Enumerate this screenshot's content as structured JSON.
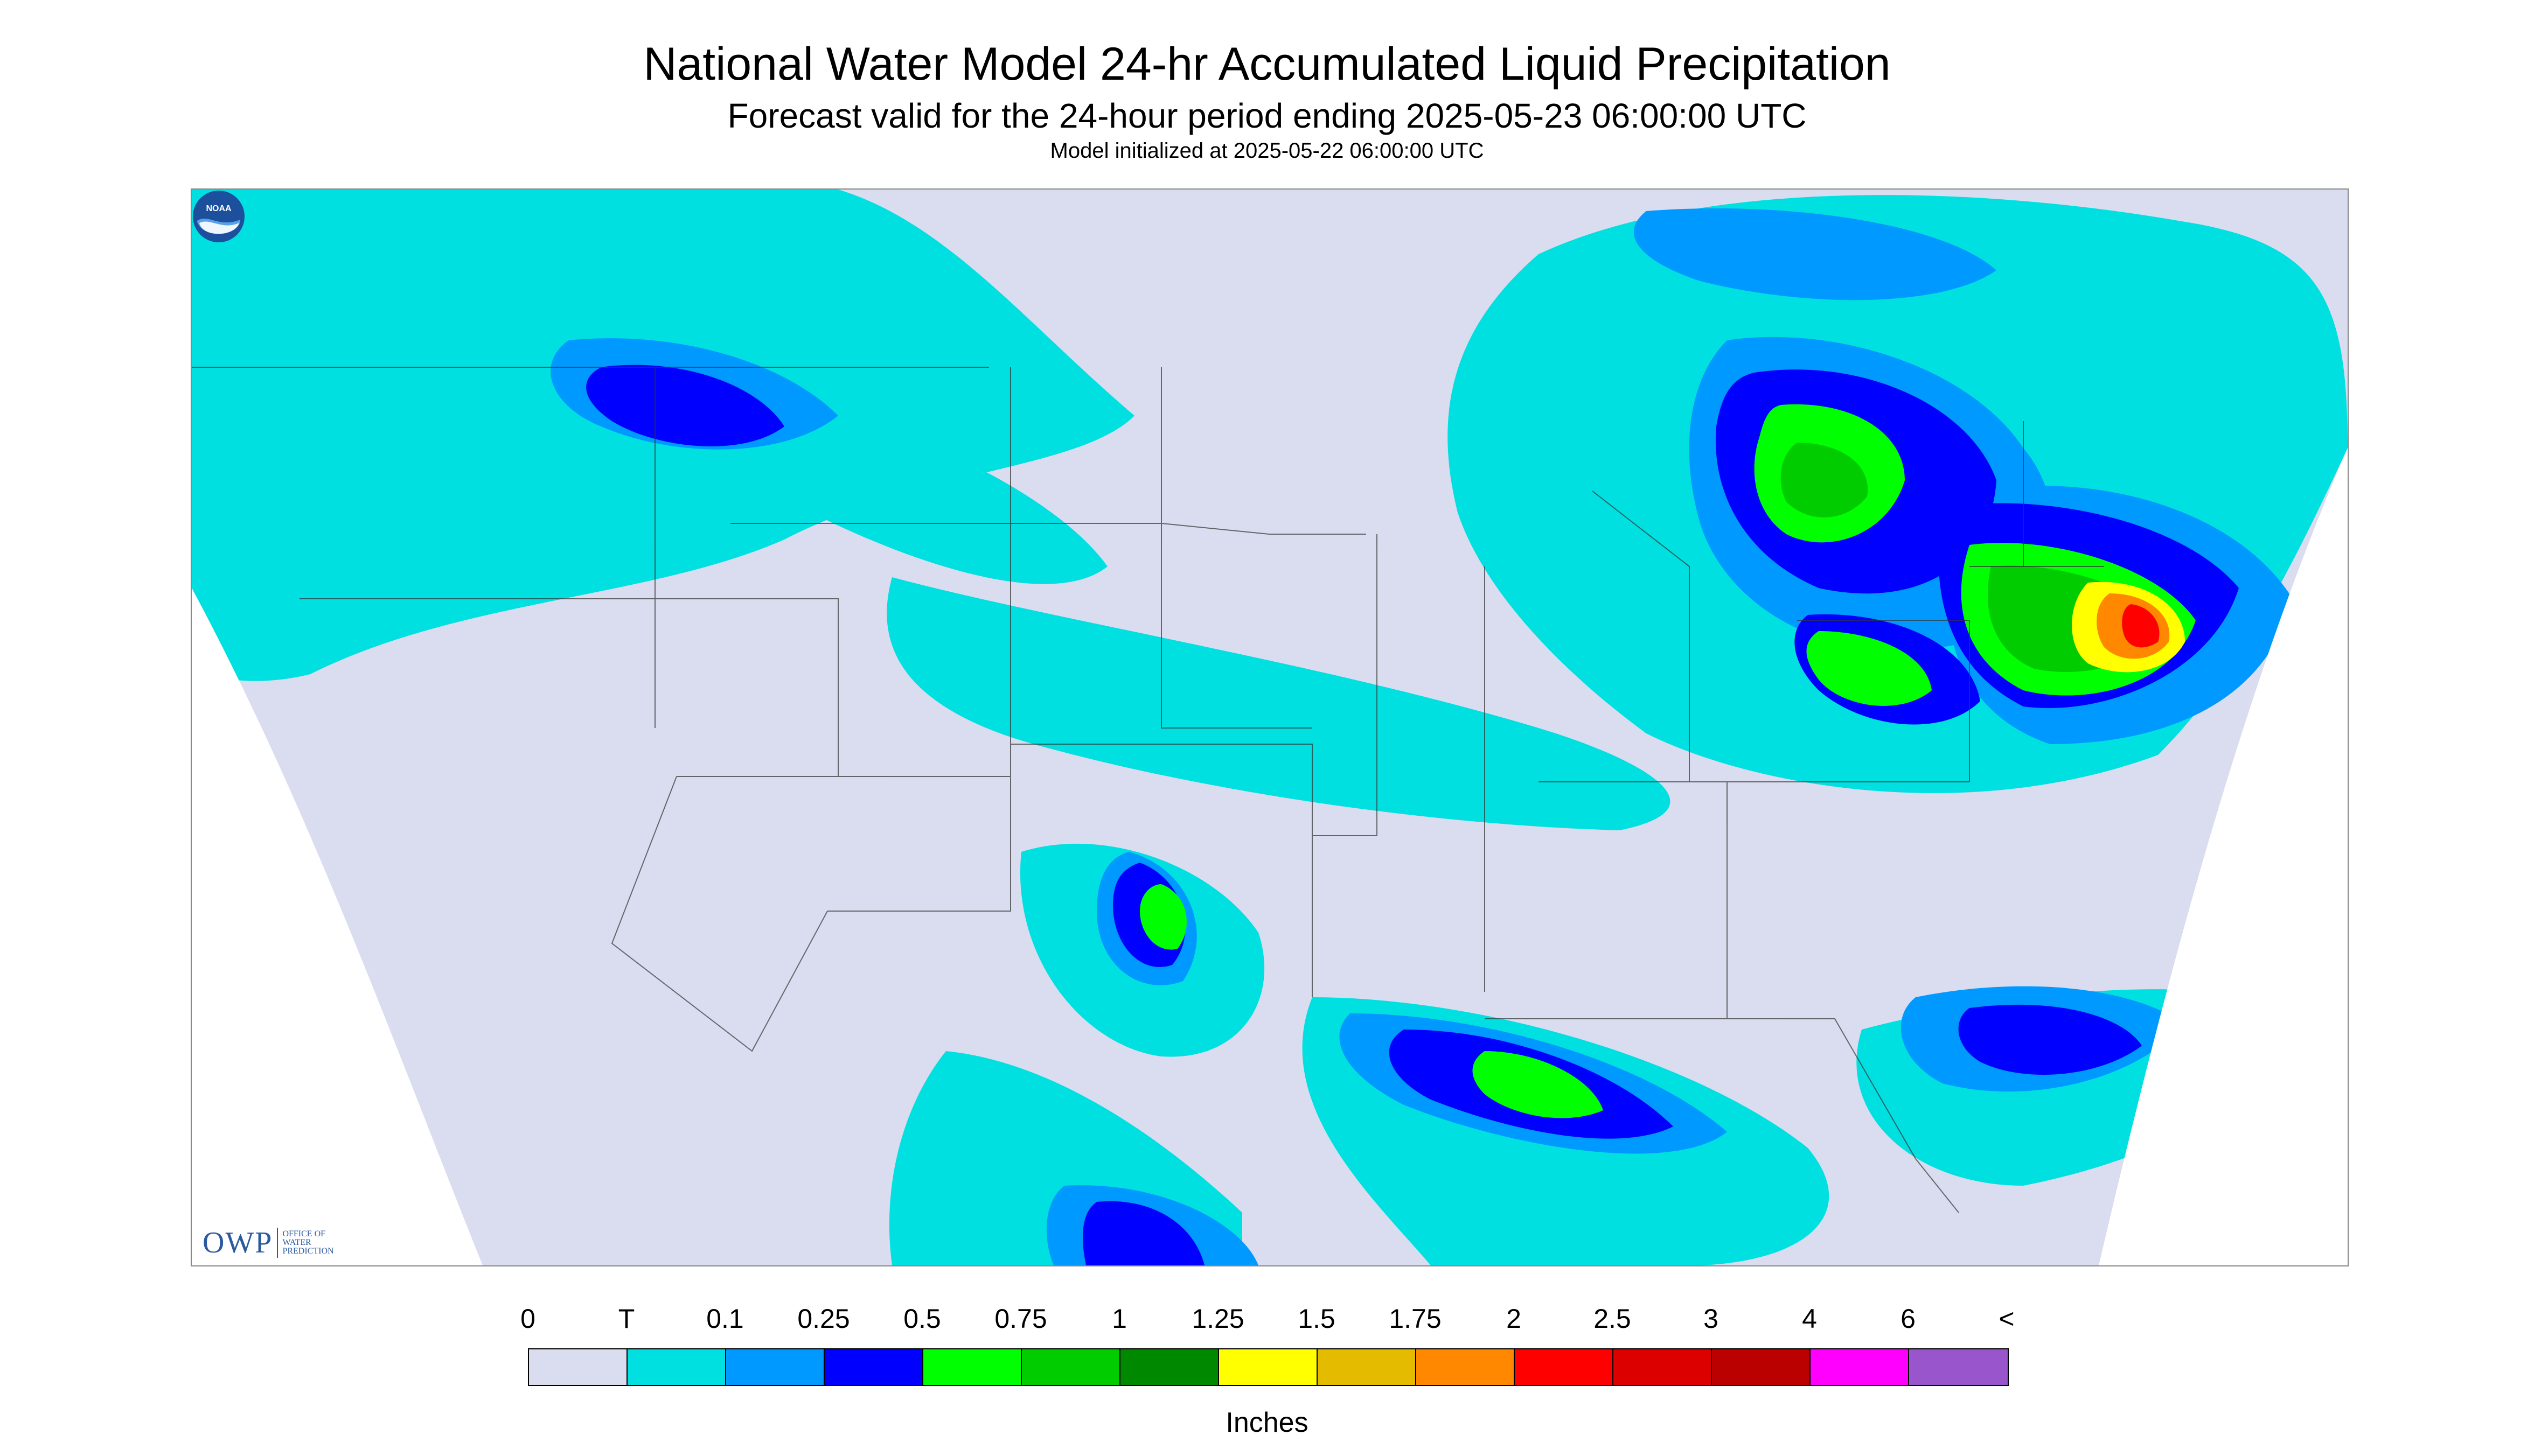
{
  "header": {
    "title": "National Water Model 24-hr Accumulated Liquid Precipitation",
    "subtitle": "Forecast valid for the 24-hour period ending 2025-05-23 06:00:00 UTC",
    "init": "Model initialized at 2025-05-22 06:00:00 UTC"
  },
  "logos": {
    "owp_text": "OWP",
    "owp_small_1": "OFFICE OF",
    "owp_small_2": "WATER",
    "owp_small_3": "PREDICTION",
    "noaa_text": "NOAA"
  },
  "legend": {
    "labels": [
      "0",
      "T",
      "0.1",
      "0.25",
      "0.5",
      "0.75",
      "1",
      "1.25",
      "1.5",
      "1.75",
      "2",
      "2.5",
      "3",
      "4",
      "6",
      "<"
    ],
    "colors": [
      "#dadcef",
      "#00e0e0",
      "#0099ff",
      "#0000ff",
      "#00ff00",
      "#00cc00",
      "#008800",
      "#ffff00",
      "#e5bb00",
      "#ff8800",
      "#ff0000",
      "#dd0000",
      "#bb0000",
      "#ff00ff",
      "#9955cc"
    ],
    "units": "Inches"
  },
  "colors": {
    "background_domain": "#dadcef",
    "trace": "#00e0e0",
    "light_blue": "#0099ff",
    "blue": "#0000ff",
    "green": "#00ff00",
    "mid_green": "#00cc00",
    "yellow": "#ffff00",
    "orange": "#ff8800",
    "red": "#ff0000"
  }
}
